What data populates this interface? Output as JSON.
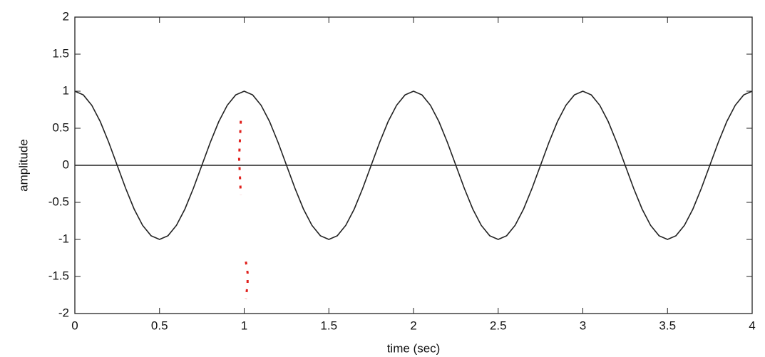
{
  "chart_data": {
    "type": "line",
    "x_label": "time (sec)",
    "y_label": "amplitude",
    "xlim": [
      0,
      4
    ],
    "ylim": [
      -2,
      2
    ],
    "xticks": [
      0,
      0.5,
      1,
      1.5,
      2,
      2.5,
      3,
      3.5,
      4
    ],
    "yticks": [
      -2,
      -1.5,
      -1,
      -0.5,
      0,
      0.5,
      1,
      1.5,
      2
    ],
    "grid": false,
    "series": [
      {
        "color": "#222222",
        "dash": false,
        "x": [
          0,
          0.05,
          0.1,
          0.15,
          0.2,
          0.25,
          0.3,
          0.35,
          0.4,
          0.45,
          0.5,
          0.55,
          0.6,
          0.65,
          0.7,
          0.75,
          0.8,
          0.85,
          0.9,
          0.95,
          1,
          1.05,
          1.1,
          1.15,
          1.2,
          1.25,
          1.3,
          1.35,
          1.4,
          1.45,
          1.5,
          1.55,
          1.6,
          1.65,
          1.7,
          1.75,
          1.8,
          1.85,
          1.9,
          1.95,
          2,
          2.05,
          2.1,
          2.15,
          2.2,
          2.25,
          2.3,
          2.35,
          2.4,
          2.45,
          2.5,
          2.55,
          2.6,
          2.65,
          2.7,
          2.75,
          2.8,
          2.85,
          2.9,
          2.95,
          3,
          3.05,
          3.1,
          3.15,
          3.2,
          3.25,
          3.3,
          3.35,
          3.4,
          3.45,
          3.5,
          3.55,
          3.6,
          3.65,
          3.7,
          3.75,
          3.8,
          3.85,
          3.9,
          3.95,
          4
        ],
        "values": [
          1,
          0.95,
          0.81,
          0.59,
          0.31,
          0,
          -0.31,
          -0.59,
          -0.81,
          -0.95,
          -1,
          -0.95,
          -0.81,
          -0.59,
          -0.31,
          0,
          0.31,
          0.59,
          0.81,
          0.95,
          1,
          0.95,
          0.81,
          0.59,
          0.31,
          0,
          -0.31,
          -0.59,
          -0.81,
          -0.95,
          -1,
          -0.95,
          -0.81,
          -0.59,
          -0.31,
          0,
          0.31,
          0.59,
          0.81,
          0.95,
          1,
          0.95,
          0.81,
          0.59,
          0.31,
          0,
          -0.31,
          -0.59,
          -0.81,
          -0.95,
          -1,
          -0.95,
          -0.81,
          -0.59,
          -0.31,
          0,
          0.31,
          0.59,
          0.81,
          0.95,
          1,
          0.95,
          0.81,
          0.59,
          0.31,
          0,
          -0.31,
          -0.59,
          -0.81,
          -0.95,
          -1,
          -0.95,
          -0.81,
          -0.59,
          -0.31,
          0,
          0.31,
          0.59,
          0.81,
          0.95,
          1
        ]
      },
      {
        "color": "#222222",
        "dash": false,
        "x": [
          0,
          4
        ],
        "values": [
          0,
          0
        ]
      },
      {
        "color": "#e0201c",
        "dash": true,
        "x": [
          0.98,
          0.975,
          0.97,
          0.975,
          0.98,
          null,
          1.01,
          1.02,
          1.02,
          1.01
        ],
        "values": [
          0.6,
          0.35,
          0.1,
          -0.15,
          -0.4,
          null,
          -1.3,
          -1.45,
          -1.6,
          -1.8
        ]
      }
    ]
  }
}
